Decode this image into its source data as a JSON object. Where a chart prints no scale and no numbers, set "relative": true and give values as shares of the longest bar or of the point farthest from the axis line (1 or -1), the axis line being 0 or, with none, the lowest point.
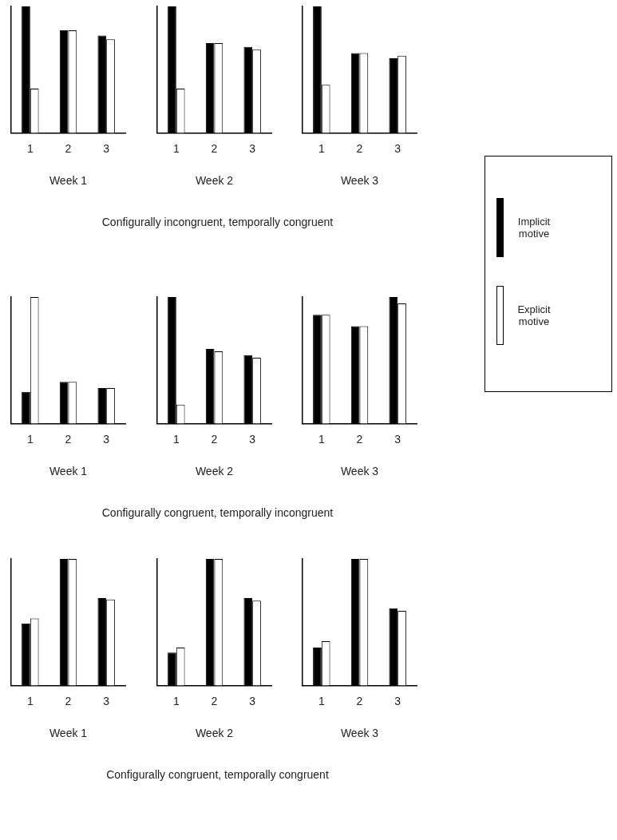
{
  "chart_data": [
    {
      "type": "bar",
      "categories": [
        "1",
        "2",
        "3"
      ],
      "xlabel": "Week 1",
      "relative": true,
      "grid": false,
      "legend": "right",
      "series": [
        {
          "name": "Implicit motive",
          "color": "#000000",
          "values": [
            1,
            0.81,
            0.77
          ]
        },
        {
          "name": "Explicit motive",
          "color": "#ffffff",
          "values": [
            0.35,
            0.81,
            0.74
          ]
        }
      ]
    },
    {
      "type": "bar",
      "categories": [
        "1",
        "2",
        "3"
      ],
      "xlabel": "Week 2",
      "relative": true,
      "grid": false,
      "annotations": [
        "Configurally incongruent, temporally congruent"
      ],
      "series": [
        {
          "color": "#000000",
          "values": [
            1,
            0.71,
            0.68
          ]
        },
        {
          "color": "#ffffff",
          "values": [
            0.35,
            0.71,
            0.66
          ]
        }
      ]
    },
    {
      "type": "bar",
      "categories": [
        "1",
        "2",
        "3"
      ],
      "xlabel": "Week 3",
      "relative": true,
      "grid": false,
      "series": [
        {
          "color": "#000000",
          "values": [
            1,
            0.63,
            0.59
          ]
        },
        {
          "color": "#ffffff",
          "values": [
            0.38,
            0.63,
            0.61
          ]
        }
      ]
    },
    {
      "type": "bar",
      "categories": [
        "1",
        "2",
        "3"
      ],
      "xlabel": "Week 1",
      "relative": true,
      "grid": false,
      "series": [
        {
          "color": "#000000",
          "values": [
            0.25,
            0.33,
            0.28
          ]
        },
        {
          "color": "#ffffff",
          "values": [
            1,
            0.33,
            0.28
          ]
        }
      ]
    },
    {
      "type": "bar",
      "categories": [
        "1",
        "2",
        "3"
      ],
      "xlabel": "Week 2",
      "relative": true,
      "grid": false,
      "annotations": [
        "Configurally congruent, temporally incongruent"
      ],
      "series": [
        {
          "color": "#000000",
          "values": [
            1,
            0.59,
            0.54
          ]
        },
        {
          "color": "#ffffff",
          "values": [
            0.15,
            0.57,
            0.52
          ]
        }
      ]
    },
    {
      "type": "bar",
      "categories": [
        "1",
        "2",
        "3"
      ],
      "xlabel": "Week 3",
      "relative": true,
      "grid": false,
      "series": [
        {
          "color": "#000000",
          "values": [
            0.86,
            0.77,
            1
          ]
        },
        {
          "color": "#ffffff",
          "values": [
            0.86,
            0.77,
            0.95
          ]
        }
      ]
    },
    {
      "type": "bar",
      "categories": [
        "1",
        "2",
        "3"
      ],
      "xlabel": "Week 1",
      "relative": true,
      "grid": false,
      "series": [
        {
          "color": "#000000",
          "values": [
            0.49,
            1,
            0.69
          ]
        },
        {
          "color": "#ffffff",
          "values": [
            0.53,
            1,
            0.68
          ]
        }
      ]
    },
    {
      "type": "bar",
      "categories": [
        "1",
        "2",
        "3"
      ],
      "xlabel": "Week 2",
      "relative": true,
      "grid": false,
      "annotations": [
        "Configurally congruent, temporally congruent"
      ],
      "series": [
        {
          "color": "#000000",
          "values": [
            0.26,
            1,
            0.69
          ]
        },
        {
          "color": "#ffffff",
          "values": [
            0.3,
            1,
            0.67
          ]
        }
      ]
    },
    {
      "type": "bar",
      "categories": [
        "1",
        "2",
        "3"
      ],
      "xlabel": "Week 3",
      "relative": true,
      "grid": false,
      "series": [
        {
          "color": "#000000",
          "values": [
            0.3,
            1,
            0.61
          ]
        },
        {
          "color": "#ffffff",
          "values": [
            0.35,
            1,
            0.59
          ]
        }
      ]
    }
  ]
}
